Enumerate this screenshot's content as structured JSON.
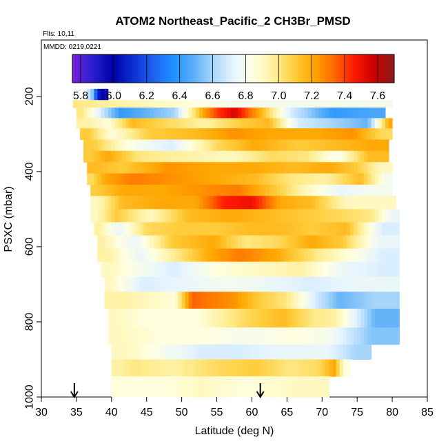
{
  "chart_data": {
    "type": "heatmap",
    "title": "ATOM2 Northeast_Pacific_2 CH3Br_PMSD",
    "flights_label": "Flts: 10,11",
    "mmdd_label": "MMDD: 0219,0221",
    "xlabel": "Latitude (deg N)",
    "ylabel": "PSXC (mbar)",
    "xlim": [
      30,
      85
    ],
    "ylim": [
      1000,
      50
    ],
    "x_ticks": [
      "30",
      "35",
      "40",
      "45",
      "50",
      "55",
      "60",
      "65",
      "70",
      "75",
      "80",
      "85"
    ],
    "y_ticks": [
      "200",
      "400",
      "600",
      "800",
      "1000"
    ],
    "colorbar": {
      "range": [
        5.75,
        7.7
      ],
      "ticks": [
        "5.8",
        "6.0",
        "6.2",
        "6.4",
        "6.6",
        "6.8",
        "7.0",
        "7.2",
        "7.4",
        "7.6"
      ],
      "colors": [
        "#7b1fe0",
        "#2a1fcf",
        "#0000a8",
        "#0a2fd2",
        "#1e5ff0",
        "#1f8fff",
        "#5aaef8",
        "#a8d6fb",
        "#e6f4ff",
        "#ffffe0",
        "#ffef9a",
        "#ffcf40",
        "#ffa500",
        "#ff6a00",
        "#ff1a00",
        "#cc0000",
        "#8b1a1a"
      ]
    },
    "flight_markers_lat": [
      34.7,
      61.2
    ],
    "layers": [
      {
        "p": [
          180,
          210
        ],
        "lat": [
          36.5,
          39.5
        ],
        "segments": [
          [
            36.5,
            37.7,
            6.65
          ],
          [
            37.7,
            38.3,
            6.1
          ],
          [
            38.3,
            39.5,
            5.95
          ]
        ]
      },
      {
        "p": [
          210,
          230
        ],
        "lat": [
          34.5,
          80
        ],
        "segments": [
          [
            34.5,
            35.3,
            7.0
          ],
          [
            35.3,
            80,
            6.8
          ]
        ]
      },
      {
        "p": [
          230,
          258
        ],
        "lat": [
          35,
          79
        ],
        "segments": [
          [
            35,
            36.5,
            7.0
          ],
          [
            36.5,
            46,
            6.4
          ],
          [
            46,
            52,
            6.6
          ],
          [
            52,
            54,
            7.2
          ],
          [
            54,
            56,
            7.4
          ],
          [
            56,
            59,
            7.55
          ],
          [
            59,
            63,
            7.2
          ],
          [
            63,
            68,
            6.7
          ],
          [
            68,
            75,
            6.4
          ],
          [
            75,
            79,
            6.45
          ]
        ]
      },
      {
        "p": [
          258,
          285
        ],
        "lat": [
          35,
          80
        ],
        "segments": [
          [
            35,
            38,
            6.95
          ],
          [
            38,
            41,
            6.85
          ],
          [
            41,
            45,
            7.15
          ],
          [
            45,
            51,
            7.05
          ],
          [
            51,
            56,
            6.95
          ],
          [
            56,
            61,
            7.1
          ],
          [
            61,
            64,
            7.15
          ],
          [
            64,
            69,
            6.7
          ],
          [
            69,
            74,
            6.6
          ],
          [
            74,
            79,
            6.5
          ],
          [
            79,
            80,
            7.2
          ]
        ]
      },
      {
        "p": [
          285,
          315
        ],
        "lat": [
          35.5,
          80
        ],
        "segments": [
          [
            35.5,
            38,
            7.1
          ],
          [
            38,
            42,
            6.85
          ],
          [
            42,
            49,
            7.1
          ],
          [
            49,
            55,
            7.15
          ],
          [
            55,
            60,
            7.25
          ],
          [
            60,
            66,
            7.2
          ],
          [
            66,
            72,
            7.2
          ],
          [
            72,
            77,
            7.25
          ],
          [
            77,
            80,
            7.05
          ]
        ]
      },
      {
        "p": [
          315,
          345
        ],
        "lat": [
          36,
          79.5
        ],
        "segments": [
          [
            36,
            39,
            7.1
          ],
          [
            39,
            45,
            6.85
          ],
          [
            45,
            52,
            6.7
          ],
          [
            52,
            58,
            7.05
          ],
          [
            58,
            63,
            7.2
          ],
          [
            63,
            70,
            7.1
          ],
          [
            70,
            74,
            7.15
          ],
          [
            74,
            79.5,
            7.2
          ]
        ]
      },
      {
        "p": [
          345,
          375
        ],
        "lat": [
          36,
          79.5
        ],
        "segments": [
          [
            36,
            38,
            7.1
          ],
          [
            38,
            41,
            7.2
          ],
          [
            41,
            47,
            7.0
          ],
          [
            47,
            54,
            6.95
          ],
          [
            54,
            60,
            6.9
          ],
          [
            60,
            66,
            7.05
          ],
          [
            66,
            70,
            7.0
          ],
          [
            70,
            74,
            6.8
          ],
          [
            74,
            79.5,
            7.15
          ]
        ]
      },
      {
        "p": [
          375,
          405
        ],
        "lat": [
          36.5,
          80
        ],
        "segments": [
          [
            36.5,
            39,
            7.15
          ],
          [
            39,
            44,
            7.1
          ],
          [
            44,
            52,
            7.25
          ],
          [
            52,
            58,
            7.2
          ],
          [
            58,
            63,
            7.2
          ],
          [
            63,
            69,
            7.15
          ],
          [
            69,
            73,
            7.2
          ],
          [
            73,
            77,
            7.1
          ],
          [
            77,
            80,
            6.9
          ]
        ]
      },
      {
        "p": [
          405,
          435
        ],
        "lat": [
          36.5,
          80
        ],
        "segments": [
          [
            36.5,
            38,
            7.05
          ],
          [
            38,
            40,
            7.2
          ],
          [
            40,
            46,
            7.3
          ],
          [
            46,
            52,
            7.25
          ],
          [
            52,
            58,
            7.2
          ],
          [
            58,
            63,
            7.15
          ],
          [
            63,
            68,
            7.0
          ],
          [
            68,
            73,
            6.95
          ],
          [
            73,
            78,
            7.15
          ],
          [
            78,
            80,
            6.8
          ]
        ]
      },
      {
        "p": [
          435,
          465
        ],
        "lat": [
          37,
          80
        ],
        "segments": [
          [
            37,
            39,
            7.1
          ],
          [
            39,
            44,
            7.2
          ],
          [
            44,
            50,
            7.2
          ],
          [
            50,
            55,
            7.25
          ],
          [
            55,
            61,
            7.3
          ],
          [
            61,
            66,
            7.1
          ],
          [
            66,
            70,
            6.9
          ],
          [
            70,
            75,
            6.75
          ],
          [
            75,
            80,
            6.8
          ]
        ]
      },
      {
        "p": [
          465,
          500
        ],
        "lat": [
          37,
          80.5
        ],
        "segments": [
          [
            37,
            39,
            6.9
          ],
          [
            39,
            44,
            7.15
          ],
          [
            44,
            50,
            7.2
          ],
          [
            50,
            54,
            7.2
          ],
          [
            54,
            58,
            7.45
          ],
          [
            58,
            62,
            7.5
          ],
          [
            62,
            66,
            7.2
          ],
          [
            66,
            71,
            7.15
          ],
          [
            71,
            76,
            6.9
          ],
          [
            76,
            80.5,
            6.9
          ]
        ]
      },
      {
        "p": [
          500,
          535
        ],
        "lat": [
          37,
          81
        ],
        "segments": [
          [
            37,
            38.5,
            6.9
          ],
          [
            38.5,
            43,
            7.1
          ],
          [
            43,
            48,
            6.9
          ],
          [
            48,
            54,
            7.15
          ],
          [
            54,
            60,
            7.2
          ],
          [
            60,
            65,
            7.15
          ],
          [
            65,
            71,
            7.1
          ],
          [
            71,
            75,
            7.05
          ],
          [
            75,
            79,
            7.0
          ],
          [
            79,
            81,
            6.75
          ]
        ]
      },
      {
        "p": [
          535,
          570
        ],
        "lat": [
          37.5,
          81
        ],
        "segments": [
          [
            37.5,
            39,
            6.95
          ],
          [
            39,
            43,
            6.75
          ],
          [
            43,
            47,
            7.05
          ],
          [
            47,
            52,
            7.1
          ],
          [
            52,
            58,
            7.1
          ],
          [
            58,
            62,
            7.15
          ],
          [
            62,
            66,
            7.15
          ],
          [
            66,
            71,
            7.1
          ],
          [
            71,
            76,
            7.15
          ],
          [
            76,
            81,
            6.7
          ]
        ]
      },
      {
        "p": [
          570,
          605
        ],
        "lat": [
          38,
          81
        ],
        "segments": [
          [
            38,
            39.5,
            6.95
          ],
          [
            39.5,
            42,
            6.85
          ],
          [
            42,
            45,
            6.75
          ],
          [
            45,
            52,
            7.1
          ],
          [
            52,
            57,
            7.2
          ],
          [
            57,
            61,
            7.0
          ],
          [
            61,
            66,
            7.05
          ],
          [
            66,
            71,
            7.2
          ],
          [
            71,
            75,
            7.1
          ],
          [
            75,
            81,
            6.75
          ]
        ]
      },
      {
        "p": [
          605,
          640
        ],
        "lat": [
          38,
          81
        ],
        "segments": [
          [
            38,
            41,
            6.95
          ],
          [
            41,
            47,
            6.75
          ],
          [
            47,
            52,
            7.0
          ],
          [
            52,
            56,
            7.2
          ],
          [
            56,
            61,
            7.3
          ],
          [
            61,
            66,
            7.2
          ],
          [
            66,
            72,
            7.0
          ],
          [
            72,
            76,
            6.85
          ],
          [
            76,
            81,
            6.7
          ]
        ]
      },
      {
        "p": [
          640,
          680
        ],
        "lat": [
          38.5,
          81
        ],
        "segments": [
          [
            38.5,
            42,
            6.9
          ],
          [
            42,
            46,
            6.8
          ],
          [
            46,
            52,
            6.7
          ],
          [
            52,
            58,
            6.85
          ],
          [
            58,
            64,
            6.9
          ],
          [
            64,
            70,
            6.95
          ],
          [
            70,
            76,
            6.75
          ],
          [
            76,
            81,
            6.7
          ]
        ]
      },
      {
        "p": [
          680,
          720
        ],
        "lat": [
          39,
          81
        ],
        "segments": [
          [
            39,
            41,
            6.9
          ],
          [
            41,
            48,
            6.7
          ],
          [
            48,
            54,
            6.75
          ],
          [
            54,
            60,
            6.8
          ],
          [
            60,
            66,
            6.75
          ],
          [
            66,
            70,
            6.7
          ],
          [
            70,
            81,
            6.75
          ]
        ]
      },
      {
        "p": [
          720,
          765
        ],
        "lat": [
          39,
          81
        ],
        "segments": [
          [
            39,
            44,
            6.95
          ],
          [
            44,
            48,
            6.9
          ],
          [
            48,
            50,
            6.85
          ],
          [
            50,
            53,
            7.35
          ],
          [
            53,
            56,
            7.3
          ],
          [
            56,
            59,
            7.25
          ],
          [
            59,
            63,
            7.1
          ],
          [
            63,
            67,
            7.0
          ],
          [
            67,
            71,
            6.7
          ],
          [
            71,
            74,
            6.5
          ],
          [
            74,
            81,
            6.6
          ]
        ]
      },
      {
        "p": [
          765,
          815
        ],
        "lat": [
          39.5,
          81
        ],
        "segments": [
          [
            39.5,
            42,
            6.9
          ],
          [
            42,
            48,
            6.85
          ],
          [
            48,
            56,
            6.85
          ],
          [
            56,
            62,
            7.05
          ],
          [
            62,
            67,
            7.15
          ],
          [
            67,
            70,
            7.0
          ],
          [
            70,
            74,
            6.95
          ],
          [
            74,
            81,
            6.5
          ]
        ]
      },
      {
        "p": [
          815,
          860
        ],
        "lat": [
          39.5,
          81
        ],
        "segments": [
          [
            39.5,
            44,
            6.9
          ],
          [
            44,
            50,
            6.85
          ],
          [
            50,
            56,
            6.85
          ],
          [
            56,
            63,
            6.8
          ],
          [
            63,
            69,
            6.85
          ],
          [
            69,
            73,
            6.8
          ],
          [
            73,
            81,
            6.55
          ]
        ]
      },
      {
        "p": [
          860,
          900
        ],
        "lat": [
          40,
          77
        ],
        "segments": [
          [
            40,
            45,
            6.9
          ],
          [
            45,
            50,
            6.8
          ],
          [
            50,
            55,
            6.7
          ],
          [
            55,
            62,
            6.7
          ],
          [
            62,
            68,
            6.75
          ],
          [
            68,
            73,
            6.75
          ],
          [
            73,
            77,
            6.6
          ]
        ]
      },
      {
        "p": [
          900,
          945
        ],
        "lat": [
          40,
          74
        ],
        "segments": [
          [
            40,
            42,
            6.95
          ],
          [
            42,
            45,
            7.0
          ],
          [
            45,
            52,
            6.95
          ],
          [
            52,
            58,
            7.05
          ],
          [
            58,
            63,
            7.1
          ],
          [
            63,
            68,
            7.0
          ],
          [
            68,
            71,
            7.05
          ],
          [
            71,
            72.5,
            7.2
          ],
          [
            72.5,
            74,
            6.85
          ]
        ]
      },
      {
        "p": [
          945,
          1000
        ],
        "lat": [
          40,
          71
        ],
        "segments": [
          [
            40,
            45,
            6.85
          ],
          [
            45,
            50,
            6.85
          ],
          [
            50,
            56,
            6.9
          ],
          [
            56,
            62,
            6.85
          ],
          [
            62,
            71,
            6.9
          ]
        ]
      }
    ]
  }
}
